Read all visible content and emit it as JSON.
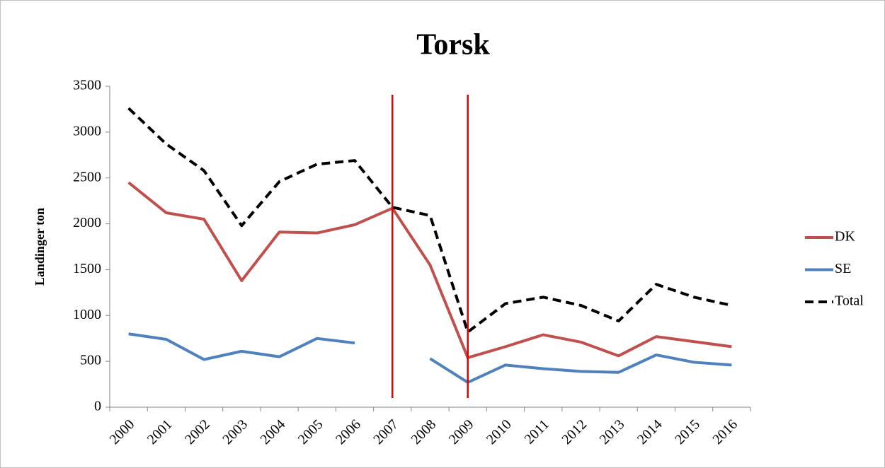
{
  "chart_data": {
    "type": "line",
    "title": "Torsk",
    "y_label": "Landinger ton",
    "categories": [
      "2000",
      "2001",
      "2002",
      "2003",
      "2004",
      "2005",
      "2006",
      "2007",
      "2008",
      "2009",
      "2010",
      "2011",
      "2012",
      "2013",
      "2014",
      "2015",
      "2016"
    ],
    "series": [
      {
        "name": "DK",
        "color": "#c0504d",
        "dash": false,
        "values": [
          2450,
          2120,
          2050,
          1380,
          1910,
          1900,
          1990,
          2170,
          1550,
          540,
          660,
          790,
          710,
          560,
          770,
          715,
          660
        ]
      },
      {
        "name": "SE",
        "color": "#4f81bd",
        "dash": false,
        "values": [
          800,
          740,
          520,
          610,
          550,
          750,
          700,
          null,
          530,
          270,
          460,
          420,
          390,
          380,
          570,
          490,
          460
        ]
      },
      {
        "name": "Total",
        "color": "#000000",
        "dash": true,
        "values": [
          3260,
          2870,
          2580,
          1980,
          2460,
          2650,
          2690,
          2180,
          2090,
          820,
          1130,
          1200,
          1110,
          940,
          1340,
          1200,
          1110
        ]
      }
    ],
    "ylim": [
      0,
      3500
    ],
    "yticks": [
      0,
      500,
      1000,
      1500,
      2000,
      2500,
      3000,
      3500
    ],
    "grid": false,
    "legend": "right",
    "vlines": {
      "categories": [
        "2007",
        "2009"
      ],
      "color": "#e00000"
    }
  }
}
